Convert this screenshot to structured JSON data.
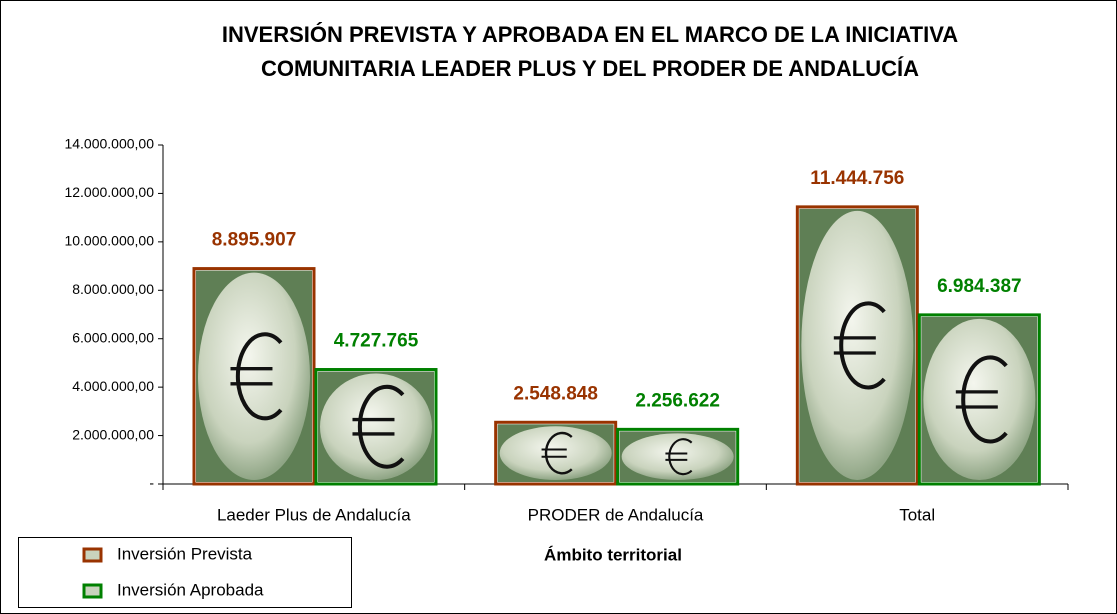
{
  "chart_data": {
    "type": "bar",
    "title": [
      "INVERSIÓN PREVISTA Y APROBADA EN EL MARCO DE LA INICIATIVA",
      "COMUNITARIA LEADER PLUS Y DEL PRODER DE ANDALUCÍA"
    ],
    "x_label": "Ámbito territorial",
    "categories": [
      "Laeder Plus de Andalucía",
      "PRODER de Andalucía",
      "Total"
    ],
    "series": [
      {
        "name": "Inversión Prevista",
        "color": "#993300",
        "values": [
          8895907,
          2548848,
          11444756
        ],
        "value_labels": [
          "8.895.907",
          "2.548.848",
          "11.444.756"
        ]
      },
      {
        "name": "Inversión Aprobada",
        "color": "#008000",
        "values": [
          4727765,
          2256622,
          6984387
        ],
        "value_labels": [
          "4.727.765",
          "2.256.622",
          "6.984.387"
        ]
      }
    ],
    "ylim": [
      0,
      14000000
    ],
    "yticks": [
      {
        "value": 0,
        "label": "-"
      },
      {
        "value": 2000000,
        "label": "2.000.000,00"
      },
      {
        "value": 4000000,
        "label": "4.000.000,00"
      },
      {
        "value": 6000000,
        "label": "6.000.000,00"
      },
      {
        "value": 8000000,
        "label": "8.000.000,00"
      },
      {
        "value": 10000000,
        "label": "10.000.000,00"
      },
      {
        "value": 12000000,
        "label": "12.000.000,00"
      },
      {
        "value": 14000000,
        "label": "14.000.000,00"
      }
    ],
    "legend": "bottom-left"
  }
}
